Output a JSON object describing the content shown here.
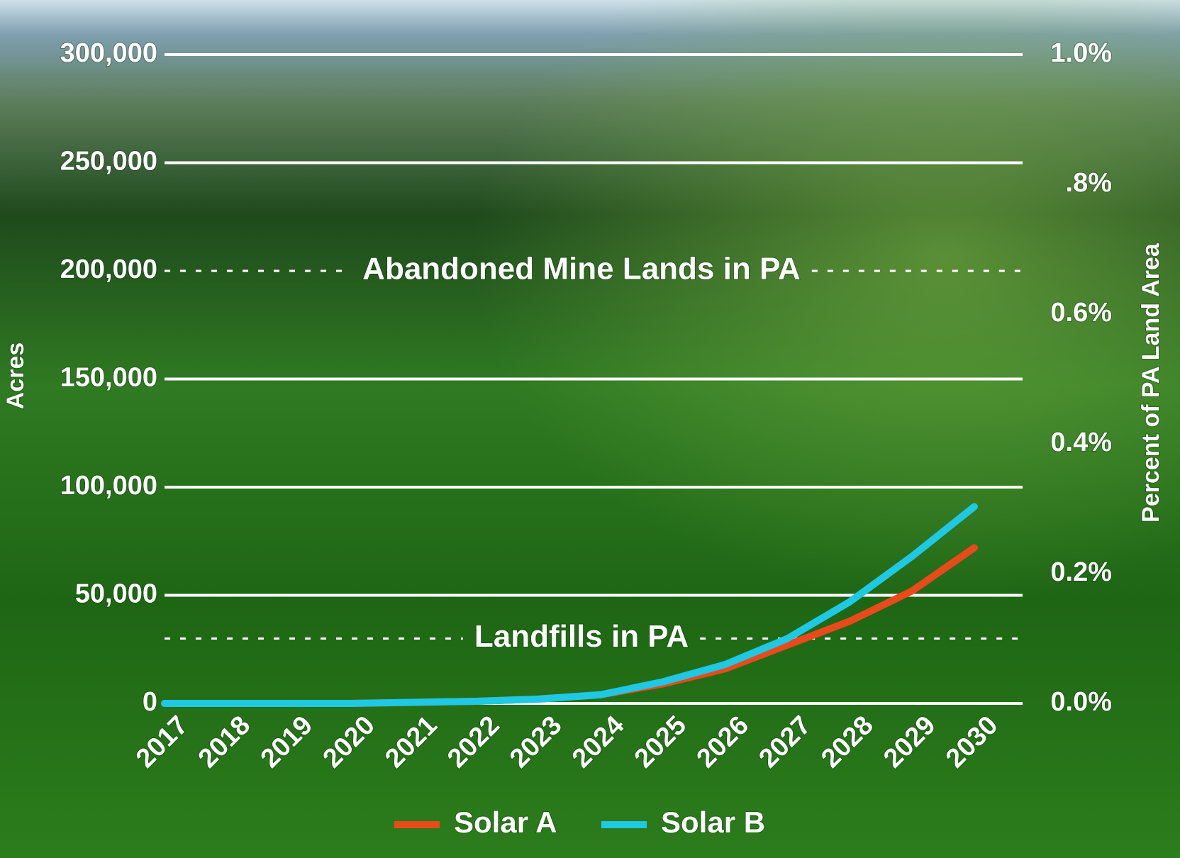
{
  "chart_data": {
    "type": "line",
    "categories": [
      "2017",
      "2018",
      "2019",
      "2020",
      "2021",
      "2022",
      "2023",
      "2024",
      "2025",
      "2026",
      "2027",
      "2028",
      "2029",
      "2030"
    ],
    "series": [
      {
        "name": "Solar A",
        "color": "#e84a1c",
        "values": [
          0,
          0,
          0,
          0,
          500,
          1000,
          2000,
          4000,
          9000,
          16000,
          27000,
          38000,
          52000,
          72000
        ]
      },
      {
        "name": "Solar B",
        "color": "#1fc8e3",
        "values": [
          0,
          0,
          0,
          0,
          500,
          1000,
          2000,
          4000,
          10000,
          18000,
          30000,
          47000,
          68000,
          91000
        ]
      }
    ],
    "ylabel": "Acres",
    "y2label": "Percent of PA Land Area",
    "ylim": [
      0,
      300000
    ],
    "yticks": [
      0,
      {
        "value": 50000,
        "label": "50,000"
      },
      {
        "value": 100000,
        "label": "100,000"
      },
      {
        "value": 150000,
        "label": "150,000"
      },
      {
        "value": 200000,
        "label": "200,000"
      },
      {
        "value": 250000,
        "label": "250,000"
      },
      {
        "value": 300000,
        "label": "300,000"
      }
    ],
    "y2lim": [
      0,
      1.0
    ],
    "y2ticks": [
      {
        "value": 0,
        "label": "0.0%"
      },
      {
        "value": 0.2,
        "label": "0.2%"
      },
      {
        "value": 0.4,
        "label": "0.4%"
      },
      {
        "value": 0.6,
        "label": "0.6%"
      },
      {
        "value": 0.8,
        "label": ".8%"
      },
      {
        "value": 1.0,
        "label": "1.0%"
      }
    ],
    "reference_lines": [
      {
        "label": "Abandoned Mine Lands in PA",
        "value": 200000
      },
      {
        "label": "Landfills in PA",
        "value": 30000
      }
    ],
    "grid": true,
    "legend": "bottom"
  }
}
